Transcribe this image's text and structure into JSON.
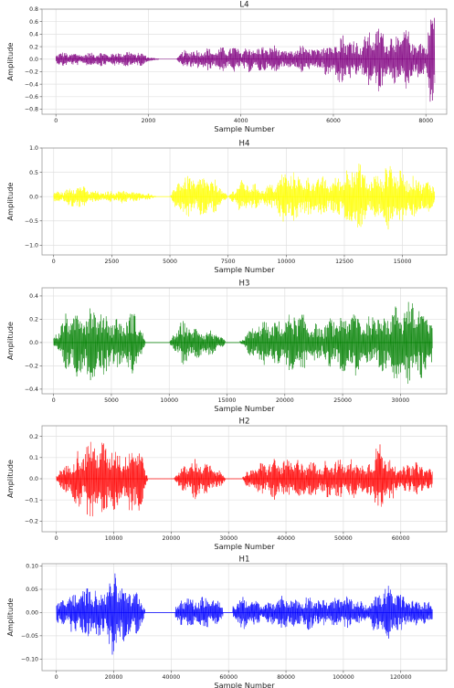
{
  "chart_data": [
    {
      "type": "line",
      "title": "L4",
      "xlabel": "Sample Number",
      "ylabel": "Amplitude",
      "color": "#800080",
      "xlim": [
        -300,
        8450
      ],
      "ylim": [
        -0.88,
        0.8
      ],
      "xticks": [
        0,
        2000,
        4000,
        6000,
        8000
      ],
      "yticks": [
        -0.8,
        -0.6,
        -0.4,
        -0.2,
        0.0,
        0.2,
        0.4,
        0.6,
        0.8
      ],
      "ytick_labels": [
        "−0.8",
        "−0.6",
        "−0.4",
        "−0.2",
        "0.0",
        "0.2",
        "0.4",
        "0.6",
        "0.8"
      ],
      "grid": true,
      "series": [
        {
          "x": [
            0,
            8192
          ],
          "envelope_x": [
            0,
            200,
            400,
            600,
            900,
            1200,
            1500,
            1800,
            2100,
            2600,
            2800,
            3000,
            3200,
            3400,
            3600,
            3800,
            4000,
            4200,
            4400,
            4600,
            4800,
            5000,
            5200,
            5400,
            5600,
            5800,
            6000,
            6200,
            6400,
            6600,
            6800,
            7000,
            7200,
            7400,
            7600,
            7800,
            8000,
            8100,
            8192
          ],
          "envelope_y": [
            0.1,
            0.12,
            0.1,
            0.1,
            0.12,
            0.1,
            0.14,
            0.12,
            0.02,
            0.0,
            0.18,
            0.15,
            0.2,
            0.16,
            0.2,
            0.22,
            0.18,
            0.22,
            0.2,
            0.24,
            0.22,
            0.12,
            0.2,
            0.25,
            0.15,
            0.28,
            0.3,
            0.45,
            0.35,
            0.3,
            0.5,
            0.55,
            0.4,
            0.45,
            0.5,
            0.3,
            0.3,
            0.85,
            0.7
          ]
        }
      ]
    },
    {
      "type": "line",
      "title": "H4",
      "xlabel": "Sample Number",
      "ylabel": "Amplitude",
      "color": "#ffff00",
      "xlim": [
        -500,
        16900
      ],
      "ylim": [
        -1.2,
        1.0
      ],
      "xticks": [
        0,
        2500,
        5000,
        7500,
        10000,
        12500,
        15000
      ],
      "yticks": [
        -1.0,
        -0.5,
        0.0,
        0.5,
        1.0
      ],
      "ytick_labels": [
        "−1.0",
        "−0.5",
        "0.0",
        "0.5",
        "1.0"
      ],
      "grid": true,
      "series": [
        {
          "x": [
            0,
            16384
          ],
          "envelope_x": [
            0,
            500,
            1000,
            1500,
            2000,
            2500,
            3000,
            3500,
            4000,
            4500,
            5000,
            5500,
            6000,
            6500,
            7000,
            7500,
            8000,
            8500,
            9000,
            9500,
            10000,
            10500,
            11000,
            11500,
            12000,
            12500,
            13000,
            13500,
            14000,
            14500,
            15000,
            15500,
            16000,
            16384
          ],
          "envelope_y": [
            0.1,
            0.15,
            0.3,
            0.15,
            0.1,
            0.12,
            0.15,
            0.1,
            0.08,
            0.0,
            0.0,
            0.5,
            0.4,
            0.45,
            0.35,
            0.0,
            0.35,
            0.3,
            0.2,
            0.3,
            0.6,
            0.5,
            0.4,
            0.45,
            0.35,
            0.55,
            0.9,
            0.4,
            0.5,
            0.8,
            0.5,
            0.45,
            0.35,
            0.3
          ]
        }
      ]
    },
    {
      "type": "line",
      "title": "H3",
      "xlabel": "Sample Number",
      "ylabel": "Amplitude",
      "color": "#008000",
      "xlim": [
        -1000,
        34000
      ],
      "ylim": [
        -0.44,
        0.47
      ],
      "xticks": [
        0,
        5000,
        10000,
        15000,
        20000,
        25000,
        30000
      ],
      "yticks": [
        -0.4,
        -0.2,
        0.0,
        0.2,
        0.4
      ],
      "ytick_labels": [
        "−0.4",
        "−0.2",
        "0.0",
        "0.2",
        "0.4"
      ],
      "grid": true,
      "series": [
        {
          "x": [
            0,
            32768
          ],
          "envelope_x": [
            0,
            1000,
            2000,
            3000,
            4000,
            5000,
            6000,
            7000,
            8000,
            9000,
            10000,
            11000,
            12000,
            13000,
            14000,
            15000,
            16000,
            17000,
            18000,
            19000,
            20000,
            21000,
            22000,
            23000,
            24000,
            25000,
            26000,
            27000,
            28000,
            29000,
            30000,
            31000,
            32000,
            32768
          ],
          "envelope_y": [
            0.05,
            0.25,
            0.3,
            0.35,
            0.3,
            0.25,
            0.2,
            0.3,
            0.0,
            0.0,
            0.0,
            0.2,
            0.15,
            0.12,
            0.1,
            0.0,
            0.0,
            0.12,
            0.2,
            0.18,
            0.22,
            0.3,
            0.2,
            0.15,
            0.22,
            0.25,
            0.3,
            0.2,
            0.3,
            0.28,
            0.35,
            0.4,
            0.3,
            0.2
          ]
        }
      ]
    },
    {
      "type": "line",
      "title": "H2",
      "xlabel": "Sample Number",
      "ylabel": "Amplitude",
      "color": "#ff0000",
      "xlim": [
        -2500,
        68000
      ],
      "ylim": [
        -0.25,
        0.25
      ],
      "xticks": [
        0,
        10000,
        20000,
        30000,
        40000,
        50000,
        60000
      ],
      "yticks": [
        -0.2,
        -0.1,
        0.0,
        0.1,
        0.2
      ],
      "ytick_labels": [
        "−0.2",
        "−0.1",
        "0.0",
        "0.1",
        "0.2"
      ],
      "grid": true,
      "series": [
        {
          "x": [
            0,
            65536
          ],
          "envelope_x": [
            0,
            2000,
            4000,
            6000,
            8000,
            10000,
            12000,
            14000,
            16000,
            18000,
            20000,
            22000,
            24000,
            26000,
            28000,
            30000,
            32000,
            34000,
            36000,
            38000,
            40000,
            42000,
            44000,
            46000,
            48000,
            50000,
            52000,
            54000,
            56000,
            58000,
            60000,
            62000,
            64000,
            65536
          ],
          "envelope_y": [
            0.03,
            0.08,
            0.15,
            0.2,
            0.18,
            0.16,
            0.12,
            0.22,
            0.0,
            0.0,
            0.0,
            0.06,
            0.1,
            0.08,
            0.05,
            0.0,
            0.0,
            0.06,
            0.08,
            0.1,
            0.09,
            0.1,
            0.09,
            0.08,
            0.1,
            0.09,
            0.1,
            0.07,
            0.18,
            0.12,
            0.05,
            0.09,
            0.07,
            0.05
          ]
        }
      ]
    },
    {
      "type": "line",
      "title": "H1",
      "xlabel": "Sample Number",
      "ylabel": "Amplitude",
      "color": "#0000ff",
      "xlim": [
        -5000,
        136000
      ],
      "ylim": [
        -0.125,
        0.105
      ],
      "xticks": [
        0,
        20000,
        40000,
        60000,
        80000,
        100000,
        120000
      ],
      "yticks": [
        -0.1,
        -0.05,
        0.0,
        0.05,
        0.1
      ],
      "ytick_labels": [
        "−0.10",
        "−0.05",
        "0.00",
        "0.05",
        "0.10"
      ],
      "grid": true,
      "series": [
        {
          "x": [
            0,
            131072
          ],
          "envelope_x": [
            0,
            4000,
            8000,
            12000,
            16000,
            20000,
            24000,
            28000,
            32000,
            36000,
            40000,
            44000,
            48000,
            52000,
            56000,
            60000,
            64000,
            68000,
            72000,
            76000,
            80000,
            84000,
            88000,
            92000,
            96000,
            100000,
            104000,
            108000,
            112000,
            116000,
            120000,
            124000,
            128000,
            131072
          ],
          "envelope_y": [
            0.02,
            0.04,
            0.05,
            0.06,
            0.05,
            0.1,
            0.06,
            0.05,
            0.0,
            0.0,
            0.0,
            0.04,
            0.03,
            0.04,
            0.03,
            0.0,
            0.04,
            0.03,
            0.02,
            0.03,
            0.04,
            0.03,
            0.04,
            0.03,
            0.03,
            0.04,
            0.03,
            0.02,
            0.05,
            0.06,
            0.04,
            0.03,
            0.03,
            0.02
          ]
        }
      ]
    }
  ]
}
